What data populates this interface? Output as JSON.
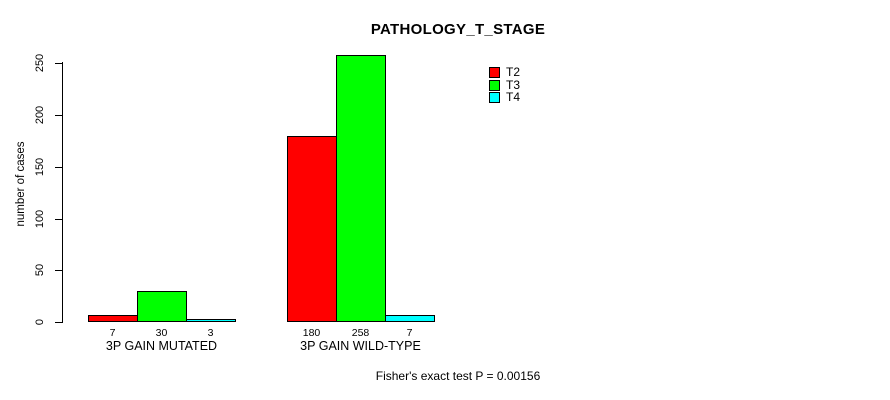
{
  "chart_data": {
    "type": "bar",
    "title": "PATHOLOGY_T_STAGE",
    "xlabel": "",
    "ylabel": "number of cases",
    "categories": [
      "3P GAIN MUTATED",
      "3P GAIN WILD-TYPE"
    ],
    "series": [
      {
        "name": "T2",
        "color": "#ff0000",
        "values": [
          7,
          180
        ]
      },
      {
        "name": "T3",
        "color": "#00ff00",
        "values": [
          30,
          258
        ]
      },
      {
        "name": "T4",
        "color": "#00ffff",
        "values": [
          3,
          7
        ]
      }
    ],
    "bar_value_labels": [
      [
        "7",
        "30",
        "3"
      ],
      [
        "180",
        "258",
        "7"
      ]
    ],
    "ylim": [
      0,
      250
    ],
    "yticks": [
      "0",
      "50",
      "100",
      "150",
      "200",
      "250"
    ],
    "grid": false,
    "legend_position": "top-right",
    "annotation": "Fisher's exact test P = 0.00156"
  }
}
